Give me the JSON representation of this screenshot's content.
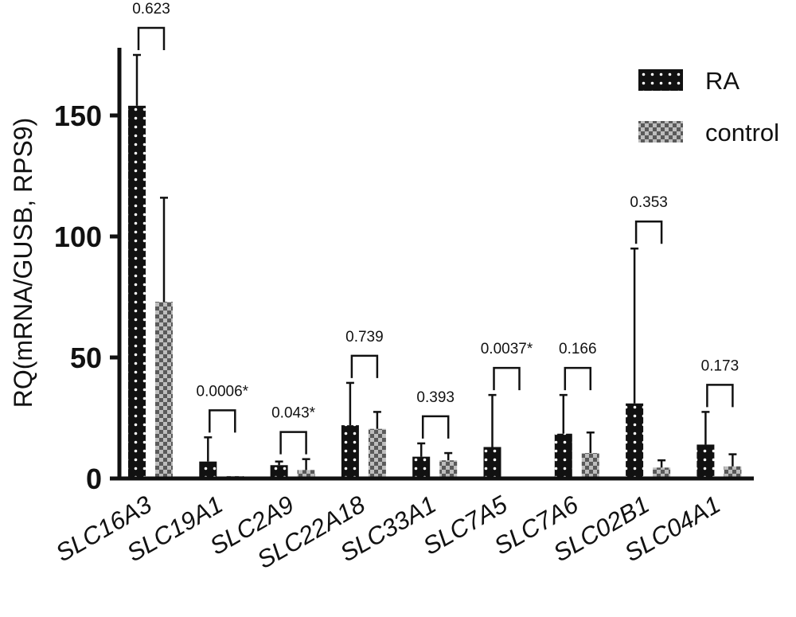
{
  "chart_data": {
    "type": "bar",
    "ylabel": "RQ(mRNA/GUSB, RPS9)",
    "ylim": [
      0,
      175
    ],
    "yticks": [
      0,
      50,
      100,
      150
    ],
    "legend_position": "top-right",
    "categories": [
      "SLC16A3",
      "SLC19A1",
      "SLC2A9",
      "SLC22A18",
      "SLC33A1",
      "SLC7A5",
      "SLC7A6",
      "SLC02B1",
      "SLC04A1"
    ],
    "series": [
      {
        "name": "RA",
        "values": [
          154,
          7,
          5.5,
          22,
          9,
          13,
          18.5,
          31,
          14
        ],
        "errors": [
          21,
          10,
          1.5,
          17.5,
          5.5,
          21.5,
          16,
          64,
          13.5
        ],
        "color": "#111111",
        "pattern": "white dots on black"
      },
      {
        "name": "control",
        "values": [
          73,
          1,
          3.5,
          20.5,
          7.5,
          0.5,
          10.5,
          4.5,
          5
        ],
        "errors": [
          43,
          0,
          4.5,
          7,
          3,
          0,
          8.5,
          3,
          5
        ],
        "color": "#888888",
        "pattern": "grey checkerboard"
      }
    ],
    "p_values": [
      "0.623",
      "0.0006*",
      "0.043*",
      "0.739",
      "0.393",
      "0.0037*",
      "0.166",
      "0.353",
      "0.173"
    ]
  }
}
